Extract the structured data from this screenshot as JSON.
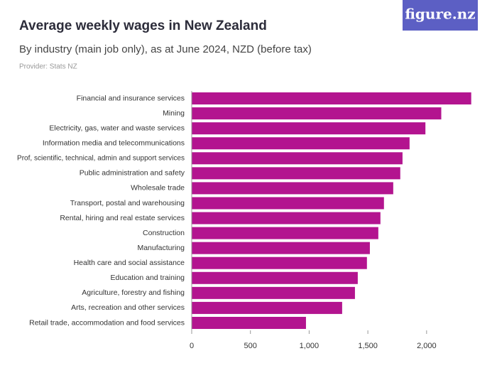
{
  "logo": "figure.nz",
  "chart_data": {
    "type": "bar",
    "orientation": "horizontal",
    "title": "Average weekly wages in New Zealand",
    "subtitle": "By industry (main job only), as at June 2024, NZD (before tax)",
    "provider": "Provider: Stats NZ",
    "color": "#b3148f",
    "categories": [
      "Financial and insurance services",
      "Mining",
      "Electricity, gas, water and waste services",
      "Information media and telecommunications",
      "Prof, scientific, technical, admin and support services",
      "Public administration and safety",
      "Wholesale trade",
      "Transport, postal and warehousing",
      "Rental, hiring and real estate services",
      "Construction",
      "Manufacturing",
      "Health care and social assistance",
      "Education and training",
      "Agriculture, forestry and fishing",
      "Arts, recreation and other services",
      "Retail trade, accommodation and food services"
    ],
    "values": [
      2380,
      2125,
      1990,
      1855,
      1795,
      1776,
      1716,
      1637,
      1607,
      1589,
      1517,
      1492,
      1414,
      1390,
      1281,
      973
    ],
    "xlim": [
      0,
      2400
    ],
    "xticks": [
      0,
      500,
      {
        "value": 1000,
        "label": "1,000"
      },
      {
        "value": 1500,
        "label": "1,500"
      },
      {
        "value": 2000,
        "label": "2,000"
      }
    ]
  }
}
